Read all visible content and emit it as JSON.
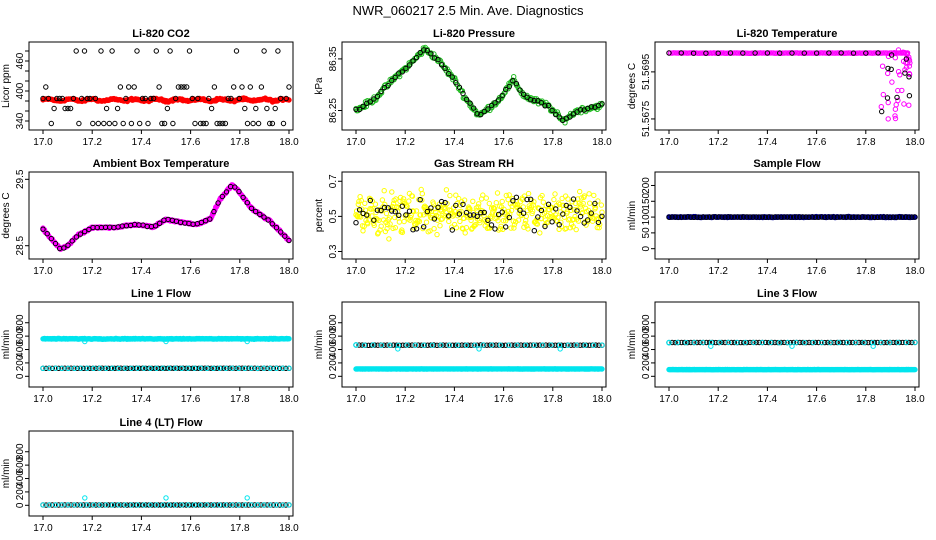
{
  "title": "NWR_060217  2.5 Min. Ave. Diagnostics",
  "colors": {
    "red": "#ff0000",
    "green": "#22bb22",
    "magenta": "#ff00ff",
    "yellow": "#ffff00",
    "navy": "#0000aa",
    "cyan": "#00e5ee",
    "black": "#000000"
  },
  "chart_data": [
    {
      "type": "scatter",
      "title": "Li-820 CO2",
      "ylabel": "Licor ppm",
      "xlim": [
        17.0,
        18.0
      ],
      "ylim": [
        330,
        490
      ],
      "xticks": [
        "17.0",
        "17.2",
        "17.4",
        "17.6",
        "17.8",
        "18.0"
      ],
      "yticks": [
        "340",
        "360",
        "380",
        "400",
        "420",
        "440",
        "460",
        "480"
      ],
      "yticks_at": [
        340,
        360,
        380,
        400,
        420,
        440,
        460,
        480
      ],
      "ytick_labels_shown": [
        "340",
        "400",
        "460"
      ],
      "series": [
        {
          "name": "avg",
          "color": "#ff0000",
          "filled": true,
          "shape": "band",
          "base": 382,
          "amp": 2,
          "noise": 3,
          "n": 240
        },
        {
          "name": "raw",
          "color": "#000000",
          "filled": false,
          "shape": "levels",
          "levels": [
            335,
            365,
            385,
            408,
            480
          ],
          "n": 90
        }
      ]
    },
    {
      "type": "scatter",
      "title": "Li-820 Pressure",
      "ylabel": "kPa",
      "xlim": [
        17.0,
        18.0
      ],
      "ylim": [
        86.22,
        86.375
      ],
      "xticks": [
        "17.0",
        "17.2",
        "17.4",
        "17.6",
        "17.8",
        "18.0"
      ],
      "yticks": [
        "86.25",
        "86.35"
      ],
      "yticks_at": [
        86.25,
        86.35
      ],
      "series": [
        {
          "name": "avg",
          "color": "#22bb22",
          "filled": false,
          "shape": "curve",
          "curve": [
            [
              17.0,
              86.25
            ],
            [
              17.07,
              86.27
            ],
            [
              17.15,
              86.31
            ],
            [
              17.22,
              86.34
            ],
            [
              17.28,
              86.37
            ],
            [
              17.33,
              86.35
            ],
            [
              17.4,
              86.31
            ],
            [
              17.45,
              86.27
            ],
            [
              17.5,
              86.24
            ],
            [
              17.58,
              86.27
            ],
            [
              17.64,
              86.31
            ],
            [
              17.68,
              86.28
            ],
            [
              17.72,
              86.27
            ],
            [
              17.78,
              86.26
            ],
            [
              17.84,
              86.23
            ],
            [
              17.9,
              86.25
            ],
            [
              18.0,
              86.26
            ]
          ],
          "noise": 0.008,
          "n": 260
        },
        {
          "name": "raw",
          "color": "#000000",
          "filled": false,
          "shape": "curve",
          "curve": [
            [
              17.0,
              86.25
            ],
            [
              17.07,
              86.27
            ],
            [
              17.15,
              86.31
            ],
            [
              17.22,
              86.34
            ],
            [
              17.28,
              86.37
            ],
            [
              17.33,
              86.35
            ],
            [
              17.4,
              86.31
            ],
            [
              17.45,
              86.27
            ],
            [
              17.5,
              86.24
            ],
            [
              17.58,
              86.27
            ],
            [
              17.64,
              86.31
            ],
            [
              17.68,
              86.28
            ],
            [
              17.72,
              86.27
            ],
            [
              17.78,
              86.26
            ],
            [
              17.84,
              86.23
            ],
            [
              17.9,
              86.25
            ],
            [
              18.0,
              86.26
            ]
          ],
          "noise": 0.004,
          "n": 70
        }
      ]
    },
    {
      "type": "scatter",
      "title": "Li-820 Temperature",
      "ylabel": "degrees C",
      "xlim": [
        17.0,
        18.0
      ],
      "ylim": [
        51.5672,
        51.5706
      ],
      "xticks": [
        "17.0",
        "17.2",
        "17.4",
        "17.6",
        "17.8",
        "18.0"
      ],
      "yticks": [
        "51.5675",
        "51.5695"
      ],
      "yticks_at": [
        51.5675,
        51.5695
      ],
      "series": [
        {
          "name": "avg",
          "color": "#ff00ff",
          "filled": false,
          "shape": "levels",
          "levels": [
            51.5703
          ],
          "n": 150,
          "xrange": [
            17.0,
            17.97
          ]
        },
        {
          "name": "avg-drop",
          "color": "#ff00ff",
          "filled": false,
          "shape": "drop",
          "n": 40
        },
        {
          "name": "raw",
          "color": "#000000",
          "filled": false,
          "shape": "levels",
          "levels": [
            51.5703
          ],
          "n": 18,
          "xrange": [
            17.0,
            17.85
          ]
        },
        {
          "name": "raw-drop",
          "color": "#000000",
          "filled": false,
          "shape": "drop",
          "n": 10
        }
      ]
    },
    {
      "type": "scatter",
      "title": "Ambient Box Temperature",
      "ylabel": "degrees C",
      "xlim": [
        17.0,
        18.0
      ],
      "ylim": [
        28.36,
        29.55
      ],
      "xticks": [
        "17.0",
        "17.2",
        "17.4",
        "17.6",
        "17.8",
        "18.0"
      ],
      "yticks": [
        "28.5",
        "29.5"
      ],
      "yticks_at": [
        28.5,
        29.5
      ],
      "series": [
        {
          "name": "avg",
          "color": "#ff00ff",
          "filled": true,
          "shape": "curve",
          "curve": [
            [
              17.0,
              28.75
            ],
            [
              17.03,
              28.62
            ],
            [
              17.07,
              28.45
            ],
            [
              17.1,
              28.5
            ],
            [
              17.14,
              28.65
            ],
            [
              17.2,
              28.77
            ],
            [
              17.3,
              28.78
            ],
            [
              17.38,
              28.82
            ],
            [
              17.45,
              28.78
            ],
            [
              17.5,
              28.9
            ],
            [
              17.55,
              28.86
            ],
            [
              17.62,
              28.82
            ],
            [
              17.68,
              28.9
            ],
            [
              17.72,
              29.2
            ],
            [
              17.77,
              29.42
            ],
            [
              17.8,
              29.3
            ],
            [
              17.85,
              29.05
            ],
            [
              17.92,
              28.88
            ],
            [
              18.0,
              28.58
            ]
          ],
          "noise": 0.02,
          "n": 320
        },
        {
          "name": "raw",
          "color": "#000000",
          "filled": false,
          "shape": "curve",
          "curve": [
            [
              17.0,
              28.75
            ],
            [
              17.03,
              28.62
            ],
            [
              17.07,
              28.45
            ],
            [
              17.1,
              28.5
            ],
            [
              17.14,
              28.65
            ],
            [
              17.2,
              28.77
            ],
            [
              17.3,
              28.78
            ],
            [
              17.38,
              28.82
            ],
            [
              17.45,
              28.78
            ],
            [
              17.5,
              28.9
            ],
            [
              17.55,
              28.86
            ],
            [
              17.62,
              28.82
            ],
            [
              17.68,
              28.9
            ],
            [
              17.72,
              29.2
            ],
            [
              17.77,
              29.42
            ],
            [
              17.8,
              29.3
            ],
            [
              17.85,
              29.05
            ],
            [
              17.92,
              28.88
            ],
            [
              18.0,
              28.58
            ]
          ],
          "noise": 0.01,
          "n": 60
        }
      ]
    },
    {
      "type": "scatter",
      "title": "Gas Stream RH",
      "ylabel": "percent",
      "xlim": [
        17.0,
        18.0
      ],
      "ylim": [
        0.28,
        0.73
      ],
      "xticks": [
        "17.0",
        "17.2",
        "17.4",
        "17.6",
        "17.8",
        "18.0"
      ],
      "yticks": [
        "0.3",
        "0.5",
        "0.7"
      ],
      "yticks_at": [
        0.3,
        0.5,
        0.7
      ],
      "series": [
        {
          "name": "avg",
          "color": "#ffff00",
          "filled": false,
          "shape": "band",
          "base": 0.52,
          "amp": 0.02,
          "noise": 0.16,
          "n": 420
        },
        {
          "name": "raw",
          "color": "#000000",
          "filled": false,
          "shape": "band",
          "base": 0.52,
          "amp": 0.02,
          "noise": 0.15,
          "n": 70
        }
      ]
    },
    {
      "type": "scatter",
      "title": "Sample Flow",
      "ylabel": "ml/min",
      "xlim": [
        17.0,
        18.0
      ],
      "ylim": [
        -20,
        230
      ],
      "xticks": [
        "17.0",
        "17.2",
        "17.4",
        "17.6",
        "17.8",
        "18.0"
      ],
      "yticks": [
        "0",
        "50",
        "100",
        "150",
        "200"
      ],
      "yticks_at": [
        0,
        50,
        100,
        150,
        200
      ],
      "series": [
        {
          "name": "avg",
          "color": "#0000aa",
          "filled": true,
          "shape": "band",
          "base": 100,
          "amp": 0,
          "noise": 2,
          "n": 300
        },
        {
          "name": "raw",
          "color": "#000000",
          "filled": false,
          "shape": "band",
          "base": 100,
          "amp": 0,
          "noise": 1,
          "n": 80
        }
      ]
    },
    {
      "type": "scatter",
      "title": "Line 1 Flow",
      "ylabel": "ml/min",
      "xlim": [
        17.0,
        18.0
      ],
      "ylim": [
        -100,
        1050
      ],
      "xticks": [
        "17.0",
        "17.2",
        "17.4",
        "17.6",
        "17.8",
        "18.0"
      ],
      "yticks": [
        "0",
        "200",
        "400",
        "600",
        "800"
      ],
      "yticks_at": [
        0,
        200,
        400,
        600,
        800
      ],
      "series": [
        {
          "name": "l1",
          "color": "#00e5ee",
          "filled": true,
          "shape": "band",
          "base": 560,
          "amp": 0,
          "noise": 8,
          "n": 320
        },
        {
          "name": "l1-dips",
          "color": "#00e5ee",
          "filled": false,
          "shape": "points",
          "points": [
            [
              17.17,
              520
            ],
            [
              17.5,
              520
            ],
            [
              17.83,
              520
            ]
          ]
        },
        {
          "name": "raw",
          "color": "#000000",
          "filled": false,
          "shape": "band",
          "base": 120,
          "amp": 0,
          "noise": 2,
          "n": 80
        },
        {
          "name": "cyan-low",
          "color": "#00e5ee",
          "filled": false,
          "shape": "band",
          "base": 120,
          "amp": 0,
          "noise": 2,
          "n": 40
        }
      ]
    },
    {
      "type": "scatter",
      "title": "Line 2 Flow",
      "ylabel": "ml/min",
      "xlim": [
        17.0,
        18.0
      ],
      "ylim": [
        -100,
        1050
      ],
      "xticks": [
        "17.0",
        "17.2",
        "17.4",
        "17.6",
        "17.8",
        "18.0"
      ],
      "yticks": [
        "0",
        "200",
        "400",
        "600",
        "800"
      ],
      "yticks_at": [
        0,
        200,
        400,
        600,
        800
      ],
      "series": [
        {
          "name": "l2",
          "color": "#00e5ee",
          "filled": true,
          "shape": "band",
          "base": 110,
          "amp": 0,
          "noise": 2,
          "n": 320
        },
        {
          "name": "raw",
          "color": "#000000",
          "filled": false,
          "shape": "band",
          "base": 465,
          "amp": 0,
          "noise": 3,
          "n": 80
        },
        {
          "name": "cyan-high",
          "color": "#00e5ee",
          "filled": false,
          "shape": "band",
          "base": 465,
          "amp": 0,
          "noise": 3,
          "n": 30
        },
        {
          "name": "l2-dips",
          "color": "#00e5ee",
          "filled": false,
          "shape": "points",
          "points": [
            [
              17.0,
              470
            ],
            [
              17.17,
              410
            ],
            [
              17.5,
              410
            ],
            [
              17.83,
              410
            ]
          ]
        }
      ]
    },
    {
      "type": "scatter",
      "title": "Line 3 Flow",
      "ylabel": "ml/min",
      "xlim": [
        17.0,
        18.0
      ],
      "ylim": [
        -100,
        1050
      ],
      "xticks": [
        "17.0",
        "17.2",
        "17.4",
        "17.6",
        "17.8",
        "18.0"
      ],
      "yticks": [
        "0",
        "200",
        "400",
        "600",
        "800"
      ],
      "yticks_at": [
        0,
        200,
        400,
        600,
        800
      ],
      "series": [
        {
          "name": "l3",
          "color": "#00e5ee",
          "filled": true,
          "shape": "band",
          "base": 100,
          "amp": 0,
          "noise": 2,
          "n": 320
        },
        {
          "name": "raw",
          "color": "#000000",
          "filled": false,
          "shape": "band",
          "base": 505,
          "amp": 0,
          "noise": 3,
          "n": 80
        },
        {
          "name": "cyan-high",
          "color": "#00e5ee",
          "filled": false,
          "shape": "band",
          "base": 505,
          "amp": 0,
          "noise": 3,
          "n": 30
        },
        {
          "name": "l3-dips",
          "color": "#00e5ee",
          "filled": false,
          "shape": "points",
          "points": [
            [
              17.0,
              500
            ],
            [
              17.17,
              450
            ],
            [
              17.5,
              450
            ],
            [
              17.83,
              450
            ]
          ]
        }
      ]
    },
    {
      "type": "scatter",
      "title": "Line 4 (LT) Flow",
      "ylabel": "ml/min",
      "xlim": [
        17.0,
        18.0
      ],
      "ylim": [
        -100,
        1050
      ],
      "xticks": [
        "17.0",
        "17.2",
        "17.4",
        "17.6",
        "17.8",
        "18.0"
      ],
      "yticks": [
        "0",
        "200",
        "400",
        "600",
        "800"
      ],
      "yticks_at": [
        0,
        200,
        400,
        600,
        800
      ],
      "series": [
        {
          "name": "raw",
          "color": "#000000",
          "filled": false,
          "shape": "band",
          "base": 5,
          "amp": 0,
          "noise": 2,
          "n": 80
        },
        {
          "name": "l4",
          "color": "#00e5ee",
          "filled": false,
          "shape": "band",
          "base": 5,
          "amp": 0,
          "noise": 2,
          "n": 40
        },
        {
          "name": "l4-spikes",
          "color": "#00e5ee",
          "filled": false,
          "shape": "points",
          "points": [
            [
              17.17,
              110
            ],
            [
              17.5,
              110
            ],
            [
              17.83,
              110
            ]
          ]
        }
      ]
    }
  ]
}
